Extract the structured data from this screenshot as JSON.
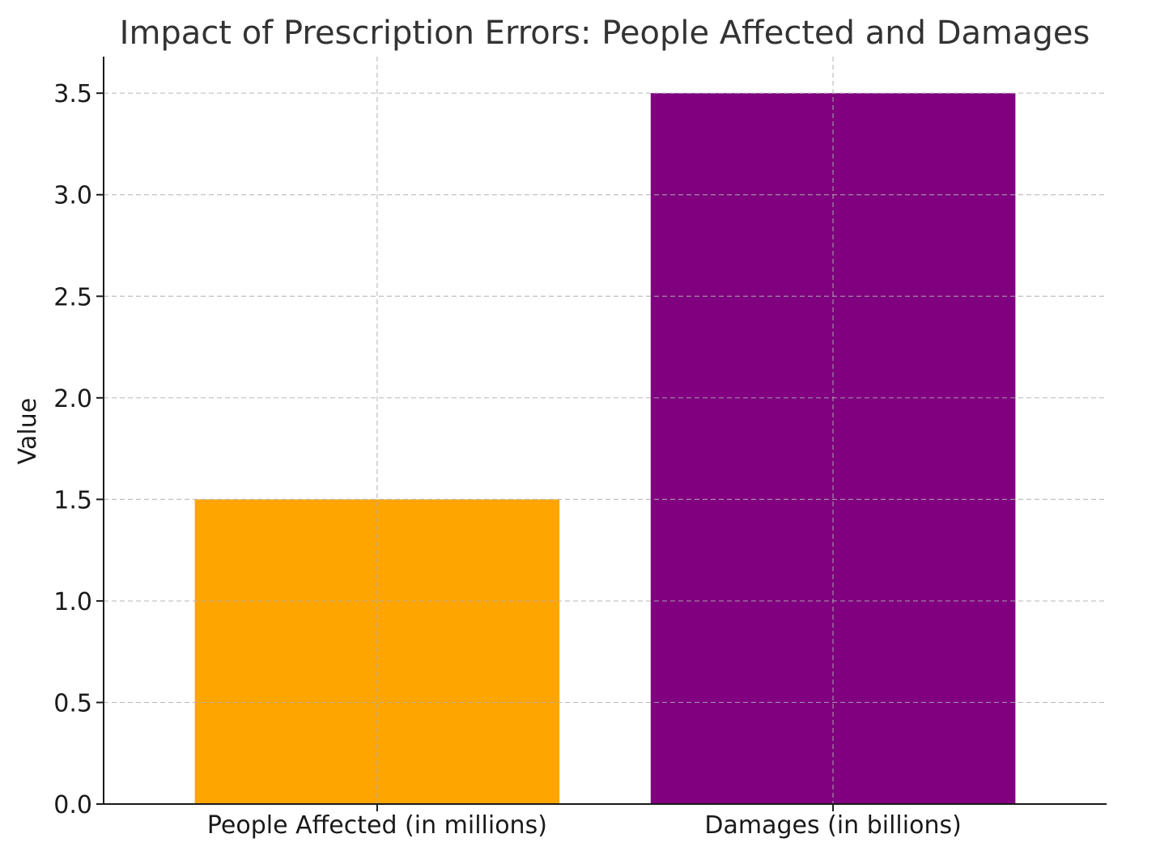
{
  "chart_data": {
    "type": "bar",
    "title": "Impact of Prescription Errors: People Affected and Damages",
    "xlabel": "",
    "ylabel": "Value",
    "categories": [
      "People Affected (in millions)",
      "Damages (in billions)"
    ],
    "values": [
      1.5,
      3.5
    ],
    "colors": [
      "#FFA500",
      "#800080"
    ],
    "ylim": [
      0,
      3.68
    ],
    "yticks": [
      0.0,
      0.5,
      1.0,
      1.5,
      2.0,
      2.5,
      3.0,
      3.5
    ],
    "ytick_labels": [
      "0.0",
      "0.5",
      "1.0",
      "1.5",
      "2.0",
      "2.5",
      "3.0",
      "3.5"
    ],
    "grid": true,
    "grid_style": "dashed"
  }
}
